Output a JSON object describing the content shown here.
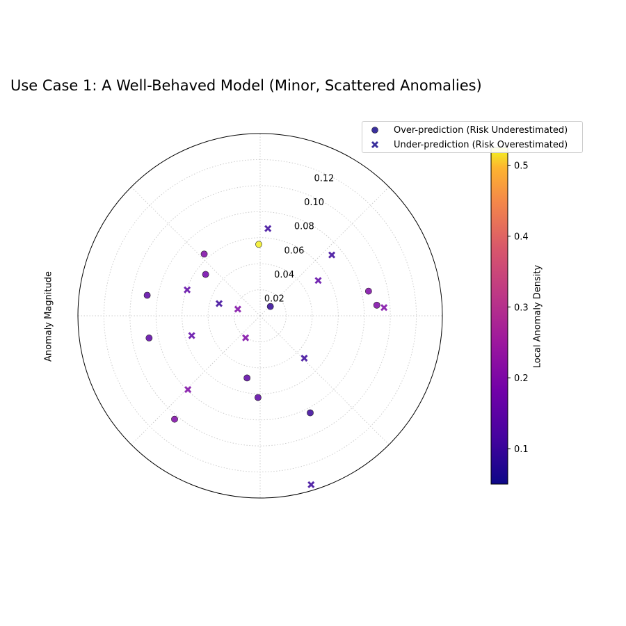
{
  "chart_data": {
    "type": "scatter",
    "projection": "polar",
    "title": "Use Case 1: A Well-Behaved Model (Minor, Scattered Anomalies)",
    "ylabel": "Anomaly Magnitude",
    "rlim": [
      0,
      0.14
    ],
    "r_ticks": [
      0.02,
      0.04,
      0.06,
      0.08,
      0.1,
      0.12
    ],
    "r_tick_labels": [
      "0.02",
      "0.04",
      "0.06",
      "0.08",
      "0.10",
      "0.12"
    ],
    "theta_grid_deg": [
      0,
      45,
      90,
      135,
      180,
      225,
      270,
      315
    ],
    "grid": true,
    "legend_position": "upper-right",
    "colormap": "plasma",
    "colorbar": {
      "label": "Local Anomaly Density",
      "range": [
        0.05,
        0.525
      ],
      "ticks": [
        0.1,
        0.2,
        0.3,
        0.4,
        0.5
      ],
      "tick_labels": [
        "0.1",
        "0.2",
        "0.3",
        "0.4",
        "0.5"
      ]
    },
    "series": [
      {
        "name": "Over-prediction (Risk Underestimated)",
        "marker": "circle",
        "legend_color": "#3a2f9c",
        "points": [
          {
            "theta": 42.3,
            "r": 0.0106,
            "density": 0.09
          },
          {
            "theta": 91.1,
            "r": 0.0549,
            "density": 0.52
          },
          {
            "theta": 132.2,
            "r": 0.064,
            "density": 0.2
          },
          {
            "theta": 142.8,
            "r": 0.0526,
            "density": 0.18
          },
          {
            "theta": 169.7,
            "r": 0.0882,
            "density": 0.15
          },
          {
            "theta": 191.3,
            "r": 0.087,
            "density": 0.15
          },
          {
            "theta": 258.1,
            "r": 0.0488,
            "density": 0.15
          },
          {
            "theta": 268.5,
            "r": 0.0628,
            "density": 0.15
          },
          {
            "theta": 230.4,
            "r": 0.1031,
            "density": 0.2
          },
          {
            "theta": 297.3,
            "r": 0.0839,
            "density": 0.1
          },
          {
            "theta": 12.8,
            "r": 0.0854,
            "density": 0.2
          },
          {
            "theta": 5.2,
            "r": 0.09,
            "density": 0.2
          }
        ]
      },
      {
        "name": "Under-prediction (Risk Overestimated)",
        "marker": "x",
        "legend_color": "#3a2f9c",
        "points": [
          {
            "theta": 84.9,
            "r": 0.0673,
            "density": 0.1
          },
          {
            "theta": 31.3,
            "r": 0.0522,
            "density": 0.15
          },
          {
            "theta": 40.3,
            "r": 0.0722,
            "density": 0.1
          },
          {
            "theta": 3.8,
            "r": 0.0954,
            "density": 0.2
          },
          {
            "theta": 160.4,
            "r": 0.0595,
            "density": 0.15
          },
          {
            "theta": 163.4,
            "r": 0.0329,
            "density": 0.1
          },
          {
            "theta": 163.4,
            "r": 0.0179,
            "density": 0.2
          },
          {
            "theta": 196.1,
            "r": 0.0547,
            "density": 0.15
          },
          {
            "theta": 236.6,
            "r": 0.0203,
            "density": 0.2
          },
          {
            "theta": 225.6,
            "r": 0.0793,
            "density": 0.2
          },
          {
            "theta": 316.2,
            "r": 0.047,
            "density": 0.1
          },
          {
            "theta": 286.8,
            "r": 0.1355,
            "density": 0.1
          }
        ]
      }
    ]
  }
}
